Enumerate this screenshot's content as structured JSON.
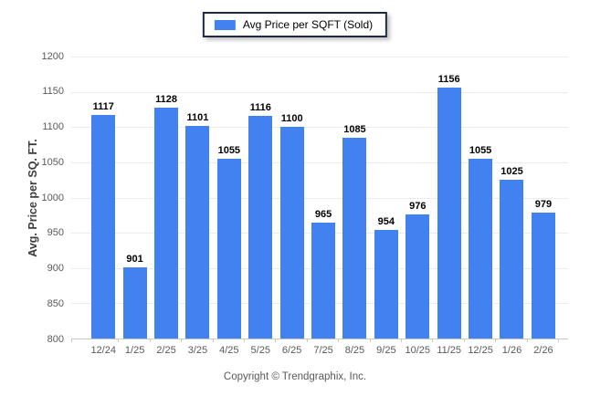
{
  "legend": {
    "label": "Avg Price per SQFT (Sold)",
    "swatch_color": "#4182f0",
    "border_color": "#1f2942"
  },
  "chart_data": {
    "type": "bar",
    "title": "",
    "categories": [
      "12/24",
      "1/25",
      "2/25",
      "3/25",
      "4/25",
      "5/25",
      "6/25",
      "7/25",
      "8/25",
      "9/25",
      "10/25",
      "11/25",
      "12/25",
      "1/26",
      "2/26"
    ],
    "values": [
      1117,
      901,
      1128,
      1101,
      1055,
      1116,
      1100,
      965,
      1085,
      954,
      976,
      1156,
      1055,
      1025,
      979
    ],
    "xlabel": "",
    "ylabel": "Avg. Price per SQ. FT.",
    "ylim": [
      800,
      1200
    ],
    "yticks": [
      800,
      850,
      900,
      950,
      1000,
      1050,
      1100,
      1150,
      1200
    ],
    "bar_color": "#4182f0",
    "grid": "horizontal",
    "legend_position": "top-center"
  },
  "footer": {
    "copyright": "Copyright © Trendgraphix, Inc."
  }
}
